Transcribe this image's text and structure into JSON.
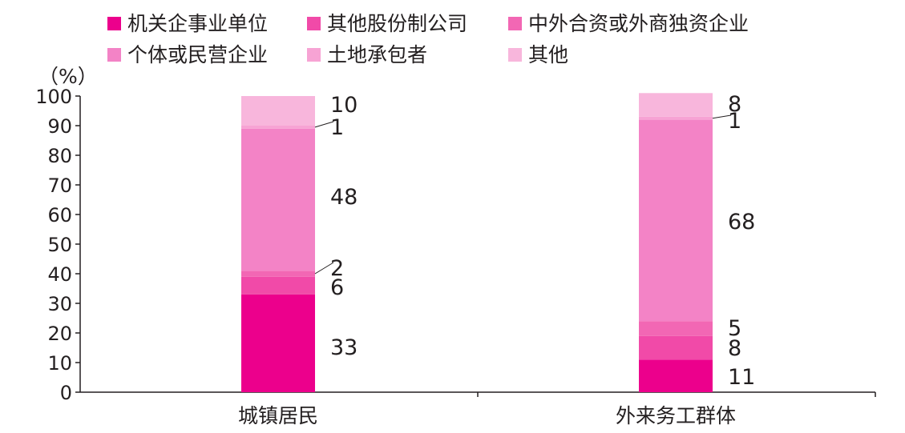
{
  "chart_data": {
    "type": "bar",
    "stacked": true,
    "unit_label": "（%）",
    "categories": [
      "城镇居民",
      "外来务工群体"
    ],
    "ylim": [
      0,
      100
    ],
    "yticks": [
      0,
      10,
      20,
      30,
      40,
      50,
      60,
      70,
      80,
      90,
      100
    ],
    "legend_placement": "top",
    "series": [
      {
        "name": "机关企事业单位",
        "color": "#ec008c",
        "values": [
          33,
          11
        ]
      },
      {
        "name": "其他股份制公司",
        "color": "#f14aa8",
        "values": [
          6,
          8
        ]
      },
      {
        "name": "中外合资或外商独资企业",
        "color": "#f267b4",
        "values": [
          2,
          5
        ]
      },
      {
        "name": "个体或民营企业",
        "color": "#f383c6",
        "values": [
          48,
          68
        ]
      },
      {
        "name": "土地承包者",
        "color": "#f7a3d4",
        "values": [
          1,
          1
        ]
      },
      {
        "name": "其他",
        "color": "#f8b6dc",
        "values": [
          10,
          8
        ]
      }
    ],
    "data_labels": [
      [
        "33",
        "6",
        "2",
        "48",
        "1",
        "10"
      ],
      [
        "11",
        "8",
        "5",
        "68",
        "1",
        "8"
      ]
    ]
  }
}
